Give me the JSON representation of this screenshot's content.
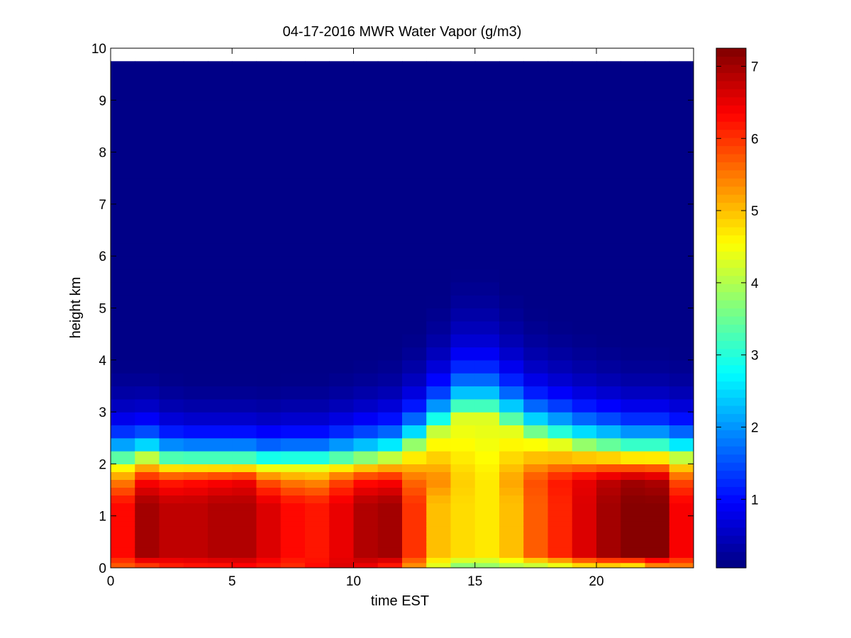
{
  "chart_data": {
    "type": "heatmap",
    "title": "04-17-2016 MWR Water Vapor (g/m3)",
    "xlabel": "time EST",
    "ylabel": "height km",
    "xlim": [
      0,
      24
    ],
    "ylim": [
      0,
      10
    ],
    "x_ticks": [
      0,
      5,
      10,
      15,
      20
    ],
    "y_ticks": [
      0,
      1,
      2,
      3,
      4,
      5,
      6,
      7,
      8,
      9,
      10
    ],
    "colorbar": {
      "colormap": "jet",
      "range": [
        0.05,
        7.25
      ],
      "ticks": [
        1,
        2,
        3,
        4,
        5,
        6,
        7
      ]
    },
    "grid": false,
    "x": [
      0.5,
      1.5,
      2.5,
      3.5,
      4.5,
      5.5,
      6.5,
      7.5,
      8.5,
      9.5,
      10.5,
      11.5,
      12.5,
      13.5,
      14.5,
      15.5,
      16.5,
      17.5,
      18.5,
      19.5,
      20.5,
      21.5,
      22.5,
      23.5
    ],
    "profile_heights_km": [
      0,
      0.1,
      0.2,
      0.3,
      0.4,
      0.5,
      0.6,
      0.7,
      0.8,
      0.9,
      1.0,
      1.1,
      1.25,
      1.4,
      1.55,
      1.7,
      1.85,
      2.0,
      2.25,
      2.5,
      2.75,
      3.0,
      3.25,
      3.5,
      3.75,
      4.0,
      4.25,
      4.5,
      4.75,
      5.0,
      5.25,
      5.5,
      5.75,
      6.0,
      6.25,
      6.5,
      6.75,
      7.0,
      7.5,
      8.0,
      8.5,
      9.0,
      9.5,
      9.75
    ],
    "profiles": [
      {
        "x": 0.5,
        "surface": 5.6,
        "low": 6.3,
        "mid": 5.4,
        "boundary_top_km": 2.0,
        "scale_height_km": 0.95
      },
      {
        "x": 1.5,
        "surface": 5.7,
        "low": 7.0,
        "mid": 6.3,
        "boundary_top_km": 2.1,
        "scale_height_km": 0.9
      },
      {
        "x": 2.5,
        "surface": 6.0,
        "low": 6.8,
        "mid": 6.1,
        "boundary_top_km": 2.0,
        "scale_height_km": 0.85
      },
      {
        "x": 3.5,
        "surface": 6.1,
        "low": 6.8,
        "mid": 6.2,
        "boundary_top_km": 2.0,
        "scale_height_km": 0.8
      },
      {
        "x": 4.5,
        "surface": 6.1,
        "low": 6.9,
        "mid": 6.3,
        "boundary_top_km": 2.0,
        "scale_height_km": 0.8
      },
      {
        "x": 5.5,
        "surface": 6.2,
        "low": 6.9,
        "mid": 6.4,
        "boundary_top_km": 2.0,
        "scale_height_km": 0.8
      },
      {
        "x": 6.5,
        "surface": 6.1,
        "low": 6.6,
        "mid": 5.7,
        "boundary_top_km": 1.95,
        "scale_height_km": 0.8
      },
      {
        "x": 7.5,
        "surface": 6.0,
        "low": 6.3,
        "mid": 5.4,
        "boundary_top_km": 1.95,
        "scale_height_km": 0.85
      },
      {
        "x": 8.5,
        "surface": 6.3,
        "low": 6.2,
        "mid": 5.3,
        "boundary_top_km": 1.95,
        "scale_height_km": 0.85
      },
      {
        "x": 9.5,
        "surface": 6.6,
        "low": 6.5,
        "mid": 5.8,
        "boundary_top_km": 2.0,
        "scale_height_km": 0.9
      },
      {
        "x": 10.5,
        "surface": 6.4,
        "low": 6.9,
        "mid": 6.2,
        "boundary_top_km": 2.05,
        "scale_height_km": 0.95
      },
      {
        "x": 11.5,
        "surface": 6.0,
        "low": 7.0,
        "mid": 6.3,
        "boundary_top_km": 2.1,
        "scale_height_km": 1.0
      },
      {
        "x": 12.5,
        "surface": 5.2,
        "low": 6.0,
        "mid": 5.6,
        "boundary_top_km": 2.3,
        "scale_height_km": 1.1
      },
      {
        "x": 13.5,
        "surface": 4.2,
        "low": 5.0,
        "mid": 5.4,
        "boundary_top_km": 2.6,
        "scale_height_km": 1.25
      },
      {
        "x": 14.5,
        "surface": 3.5,
        "low": 4.8,
        "mid": 4.9,
        "boundary_top_km": 2.9,
        "scale_height_km": 1.4
      },
      {
        "x": 15.5,
        "surface": 3.6,
        "low": 4.7,
        "mid": 4.7,
        "boundary_top_km": 2.9,
        "scale_height_km": 1.4
      },
      {
        "x": 16.5,
        "surface": 3.8,
        "low": 5.0,
        "mid": 5.2,
        "boundary_top_km": 2.7,
        "scale_height_km": 1.3
      },
      {
        "x": 17.5,
        "surface": 3.8,
        "low": 5.7,
        "mid": 5.8,
        "boundary_top_km": 2.5,
        "scale_height_km": 1.2
      },
      {
        "x": 18.5,
        "surface": 4.0,
        "low": 6.1,
        "mid": 6.2,
        "boundary_top_km": 2.4,
        "scale_height_km": 1.15
      },
      {
        "x": 19.5,
        "surface": 4.4,
        "low": 6.6,
        "mid": 6.5,
        "boundary_top_km": 2.3,
        "scale_height_km": 1.1
      },
      {
        "x": 20.5,
        "surface": 4.4,
        "low": 7.0,
        "mid": 6.8,
        "boundary_top_km": 2.25,
        "scale_height_km": 1.05
      },
      {
        "x": 21.5,
        "surface": 4.2,
        "low": 7.2,
        "mid": 7.0,
        "boundary_top_km": 2.2,
        "scale_height_km": 1.0
      },
      {
        "x": 22.5,
        "surface": 5.0,
        "low": 7.2,
        "mid": 6.9,
        "boundary_top_km": 2.2,
        "scale_height_km": 1.0
      },
      {
        "x": 23.5,
        "surface": 5.3,
        "low": 6.4,
        "mid": 5.8,
        "boundary_top_km": 2.1,
        "scale_height_km": 1.0
      }
    ]
  }
}
